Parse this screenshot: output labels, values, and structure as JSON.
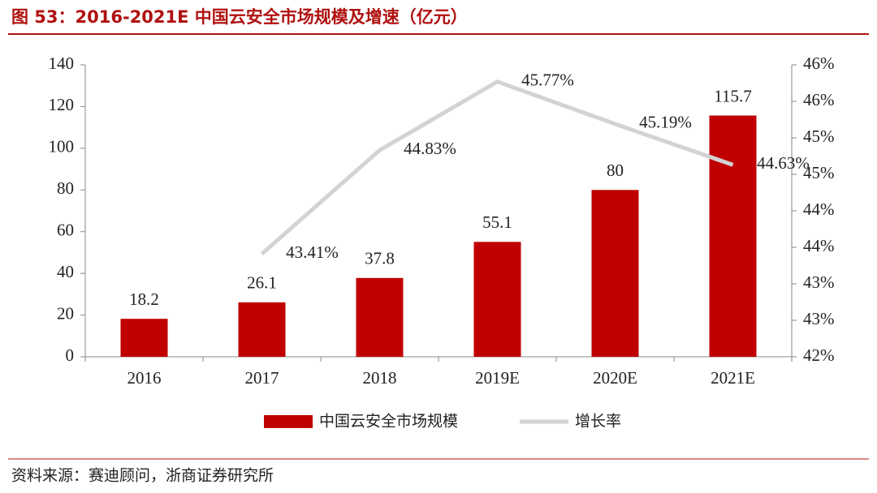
{
  "chart_data": {
    "type": "bar",
    "title": "图 53：2016-2021E 中国云安全市场规模及增速（亿元）",
    "source": "资料来源：赛迪顾问，浙商证券研究所",
    "categories": [
      "2016",
      "2017",
      "2018",
      "2019E",
      "2020E",
      "2021E"
    ],
    "series": [
      {
        "name": "中国云安全市场规模",
        "type": "bar",
        "color": "#c00000",
        "values": [
          18.2,
          26.1,
          37.8,
          55.1,
          80,
          115.7
        ]
      },
      {
        "name": "增长率",
        "type": "line",
        "axis": "y2",
        "color": "#d3d3d3",
        "values": [
          null,
          43.41,
          44.83,
          45.77,
          45.19,
          44.63
        ],
        "value_labels": [
          null,
          "43.41%",
          "44.83%",
          "45.77%",
          "45.19%",
          "44.63%"
        ]
      }
    ],
    "ylim": [
      0,
      140
    ],
    "yticks": [
      0,
      20,
      40,
      60,
      80,
      100,
      120,
      140
    ],
    "y2lim": [
      42,
      46
    ],
    "y2ticks": [
      {
        "value": 42,
        "label": "42%"
      },
      {
        "value": 42.5,
        "label": "43%"
      },
      {
        "value": 43,
        "label": "43%"
      },
      {
        "value": 43.5,
        "label": "44%"
      },
      {
        "value": 44,
        "label": "44%"
      },
      {
        "value": 44.5,
        "label": "45%"
      },
      {
        "value": 45,
        "label": "45%"
      },
      {
        "value": 45.5,
        "label": "46%"
      },
      {
        "value": 46,
        "label": "46%"
      }
    ]
  }
}
